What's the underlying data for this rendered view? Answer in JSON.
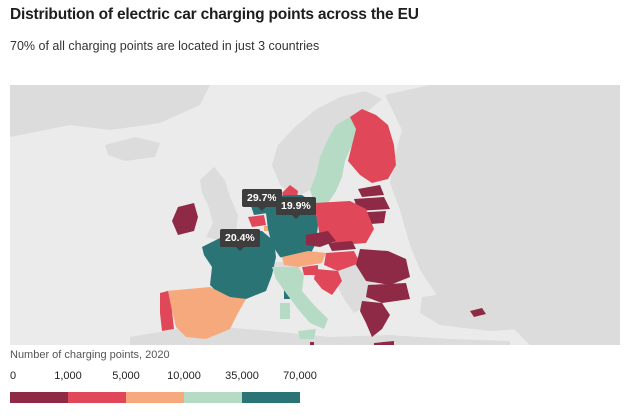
{
  "title": "Distribution of electric car charging points across the EU",
  "subtitle": "70% of all charging points are located in just 3 countries",
  "callouts": [
    {
      "label": "29.7%"
    },
    {
      "label": "19.9%"
    },
    {
      "label": "20.4%"
    }
  ],
  "legend": {
    "title": "Number of charging points, 2020",
    "ticks": [
      "0",
      "1,000",
      "5,000",
      "10,000",
      "35,000",
      "70,000"
    ],
    "colors": [
      "#8e2a45",
      "#e0485a",
      "#f6a97c",
      "#b5dbc5",
      "#2b7476"
    ]
  },
  "colors": {
    "background_land": "#dcdcdc",
    "ocean": "#ebebeb"
  }
}
